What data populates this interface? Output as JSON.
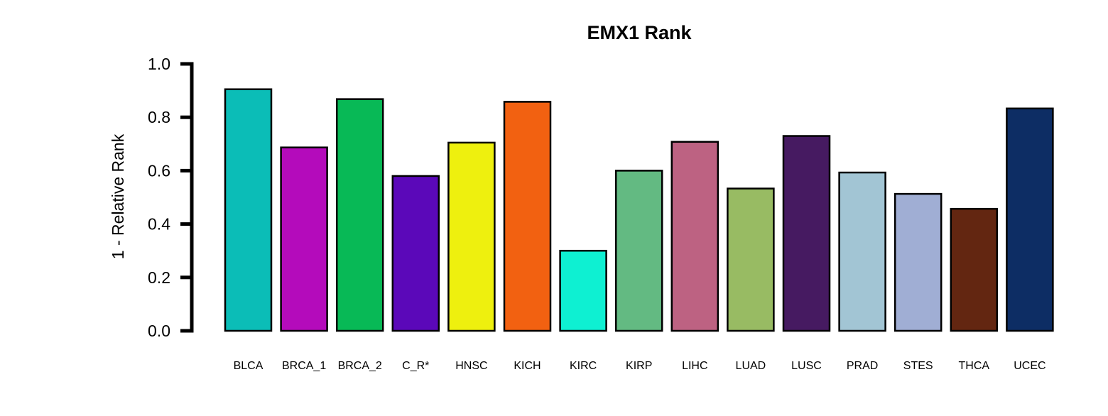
{
  "chart_data": {
    "type": "bar",
    "title": "EMX1 Rank",
    "xlabel": "",
    "ylabel": "1 - Relative Rank",
    "ylim": [
      0,
      1.0
    ],
    "yticks": [
      "0.0",
      "0.2",
      "0.4",
      "0.6",
      "0.8",
      "1.0"
    ],
    "ytick_values": [
      0,
      0.2,
      0.4,
      0.6,
      0.8,
      1.0
    ],
    "grid": false,
    "legend": "none",
    "categories": [
      "BLCA",
      "BRCA_1",
      "BRCA_2",
      "C_R*",
      "HNSC",
      "KICH",
      "KIRC",
      "KIRP",
      "LIHC",
      "LUAD",
      "LUSC",
      "PRAD",
      "STES",
      "THCA",
      "UCEC"
    ],
    "values": [
      0.905,
      0.687,
      0.868,
      0.58,
      0.705,
      0.858,
      0.3,
      0.6,
      0.708,
      0.533,
      0.73,
      0.593,
      0.513,
      0.457,
      0.833
    ],
    "colors": [
      "#0BBDB7",
      "#B40BBB",
      "#08B956",
      "#5B08B9",
      "#EEF00E",
      "#F26111",
      "#0EF0D2",
      "#63BA82",
      "#BD6282",
      "#98BB63",
      "#461A61",
      "#A2C5D4",
      "#A0AED4",
      "#632611",
      "#0D2D64"
    ]
  }
}
